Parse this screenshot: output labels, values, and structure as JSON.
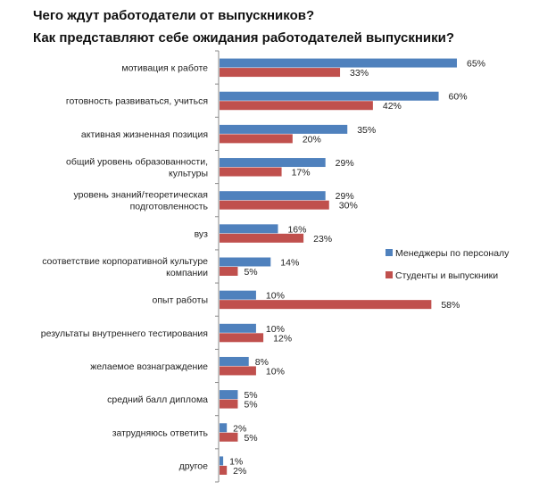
{
  "chart_data": {
    "type": "bar",
    "orientation": "horizontal",
    "title": [
      "Чего ждут работодатели от выпускников?",
      "Как представляют себе ожидания работодателей выпускники?"
    ],
    "categories": [
      [
        "мотивация к работе"
      ],
      [
        "готовность развиваться,  учиться"
      ],
      [
        "активная жизненная позиция"
      ],
      [
        "общий уровень образованности,",
        "культуры"
      ],
      [
        "уровень знаний/теоретическая",
        "подготовленность"
      ],
      [
        "вуз"
      ],
      [
        "соответствие корпоративной культуре",
        "компании"
      ],
      [
        "опыт работы"
      ],
      [
        "результаты внутреннего тестирования"
      ],
      [
        "желаемое вознаграждение"
      ],
      [
        "средний балл диплома"
      ],
      [
        "затрудняюсь ответить"
      ],
      [
        "другое"
      ]
    ],
    "series": [
      {
        "name": "Менеджеры по персоналу",
        "color": "#4f81bd",
        "values": [
          65,
          60,
          35,
          29,
          29,
          16,
          14,
          10,
          10,
          8,
          5,
          2,
          1
        ]
      },
      {
        "name": "Студенты и выпускники",
        "color": "#c0504d",
        "values": [
          33,
          42,
          20,
          17,
          30,
          23,
          5,
          58,
          12,
          10,
          5,
          5,
          2
        ]
      }
    ],
    "value_suffix": "%",
    "xlim": [
      0,
      70
    ],
    "grid": false,
    "legend": "right"
  }
}
